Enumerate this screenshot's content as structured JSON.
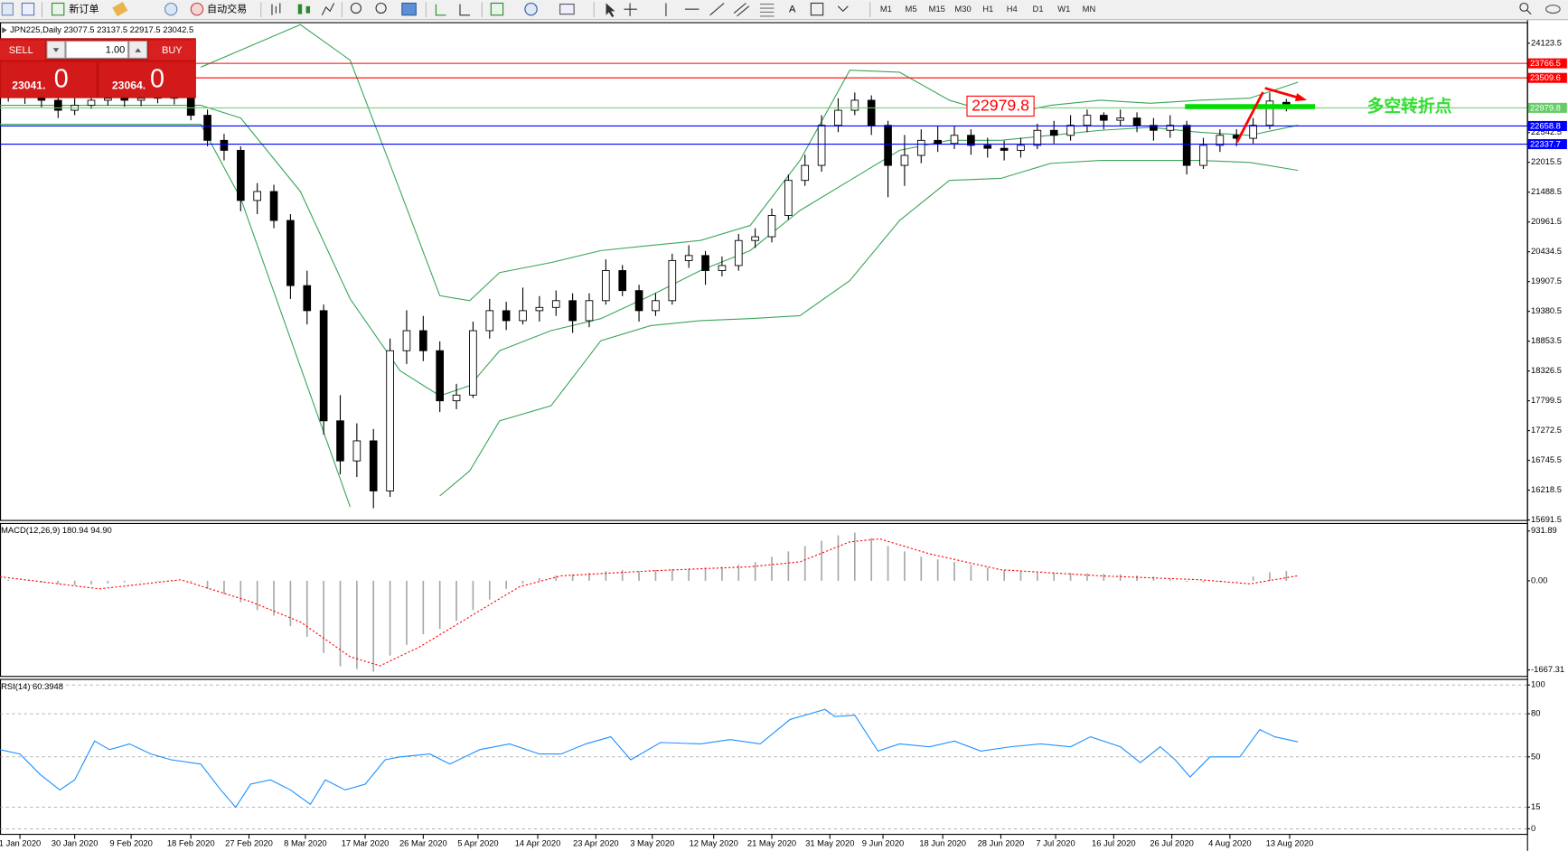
{
  "toolbar": {
    "new_order": "新订单",
    "auto_trading": "自动交易",
    "timeframes": [
      "M1",
      "M5",
      "M15",
      "M30",
      "H1",
      "H4",
      "D1",
      "W1",
      "MN"
    ]
  },
  "trade_panel": {
    "sell": "SELL",
    "lot": "1.00",
    "buy": "BUY",
    "bid": "23041.",
    "bid_last": "0",
    "ask": "23064.",
    "ask_last": "0"
  },
  "chart_data": [
    {
      "type": "candlestick",
      "title": "JPN225,Daily  23077.5 23137.5 22917.5 23042.5",
      "xlim": [
        -0.5,
        91.5
      ],
      "ylim": [
        15674,
        24495
      ],
      "yticks": [
        15691.5,
        16218.5,
        16745.5,
        17272.5,
        17799.5,
        18326.5,
        18853.5,
        19380.5,
        19907.5,
        20434.5,
        20961.5,
        21488.5,
        22015.5,
        22542.5,
        24123.5
      ],
      "xticks": [
        {
          "value": 0.7,
          "label": "1 Jan 2020"
        },
        {
          "value": 4.0,
          "label": "30 Jan 2020"
        },
        {
          "value": 7.4,
          "label": "9 Feb 2020"
        },
        {
          "value": 11.0,
          "label": "18 Feb 2020"
        },
        {
          "value": 14.5,
          "label": "27 Feb 2020"
        },
        {
          "value": 17.9,
          "label": "8 Mar 2020"
        },
        {
          "value": 21.5,
          "label": "17 Mar 2020"
        },
        {
          "value": 25.0,
          "label": "26 Mar 2020"
        },
        {
          "value": 28.3,
          "label": "5 Apr 2020"
        },
        {
          "value": 31.9,
          "label": "14 Apr 2020"
        },
        {
          "value": 35.4,
          "label": "23 Apr 2020"
        },
        {
          "value": 38.8,
          "label": "3 May 2020"
        },
        {
          "value": 42.5,
          "label": "12 May 2020"
        },
        {
          "value": 46.0,
          "label": "21 May 2020"
        },
        {
          "value": 49.5,
          "label": "31 May 2020"
        },
        {
          "value": 52.7,
          "label": "9 Jun 2020"
        },
        {
          "value": 56.3,
          "label": "18 Jun 2020"
        },
        {
          "value": 59.8,
          "label": "28 Jun 2020"
        },
        {
          "value": 63.1,
          "label": "7 Jul 2020"
        },
        {
          "value": 66.6,
          "label": "16 Jul 2020"
        },
        {
          "value": 70.1,
          "label": "26 Jul 2020"
        },
        {
          "value": 73.6,
          "label": "4 Aug 2020"
        },
        {
          "value": 77.2,
          "label": "13 Aug 2020"
        }
      ],
      "open": [
        23250,
        23202,
        23167,
        23114,
        22937,
        23025,
        23114,
        23149,
        23114,
        23149,
        23167,
        23149,
        22848,
        22405,
        22228,
        21342,
        21500,
        20988,
        19836,
        19393,
        17445,
        16736,
        17091,
        16205,
        18685,
        19039,
        18685,
        17799,
        17900,
        19039,
        19393,
        19216,
        19393,
        19450,
        19570,
        19216,
        19570,
        20102,
        19748,
        19393,
        19570,
        20279,
        20368,
        20102,
        20191,
        20634,
        20700,
        21077,
        21697,
        21962,
        22671,
        22937,
        23114,
        22671,
        21962,
        22139,
        22405,
        22350,
        22494,
        22317,
        22264,
        22228,
        22317,
        22582,
        22494,
        22671,
        22848,
        22760,
        22800,
        22671,
        22582,
        22671,
        21962,
        22317,
        22494,
        22441,
        22671,
        23077.5
      ],
      "high": [
        23380,
        23320,
        23290,
        23200,
        23150,
        23230,
        23260,
        23270,
        23250,
        23290,
        23280,
        23230,
        22950,
        22520,
        22300,
        21650,
        21620,
        21100,
        20100,
        19500,
        17900,
        17400,
        17300,
        18900,
        19400,
        19300,
        18850,
        18100,
        19200,
        19600,
        19550,
        19800,
        19650,
        19750,
        19700,
        19700,
        20300,
        20200,
        19850,
        19700,
        20400,
        20550,
        20450,
        20350,
        20750,
        20850,
        21200,
        21800,
        22150,
        22850,
        23150,
        23250,
        23200,
        22750,
        22500,
        22600,
        22650,
        22650,
        22600,
        22450,
        22400,
        22450,
        22700,
        22750,
        22850,
        22950,
        22900,
        22950,
        22900,
        22800,
        22850,
        22750,
        22450,
        22600,
        22600,
        22800,
        23250,
        23137.5
      ],
      "low": [
        23090,
        23050,
        22990,
        22800,
        22850,
        22960,
        23020,
        23000,
        23010,
        23060,
        23040,
        22760,
        22300,
        22050,
        21150,
        21100,
        20850,
        19600,
        19150,
        17200,
        16500,
        16450,
        15900,
        16100,
        18450,
        18500,
        17600,
        17650,
        17850,
        18900,
        19050,
        19150,
        19200,
        19300,
        19000,
        19100,
        19500,
        19650,
        19200,
        19300,
        19500,
        20150,
        19850,
        20000,
        20100,
        20500,
        20600,
        21000,
        21600,
        21850,
        22550,
        22850,
        22500,
        21400,
        21600,
        22000,
        22200,
        22250,
        22150,
        22100,
        22050,
        22100,
        22250,
        22350,
        22400,
        22550,
        22600,
        22650,
        22550,
        22400,
        22450,
        21800,
        21900,
        22200,
        22300,
        22350,
        22600,
        22917.5
      ],
      "close": [
        23202,
        23167,
        23114,
        22937,
        23025,
        23114,
        23149,
        23114,
        23149,
        23167,
        23149,
        22848,
        22405,
        22228,
        21342,
        21500,
        20988,
        19836,
        19393,
        17445,
        16736,
        17091,
        16205,
        18685,
        19039,
        18685,
        17799,
        17900,
        19039,
        19393,
        19216,
        19393,
        19450,
        19570,
        19216,
        19570,
        20102,
        19748,
        19393,
        19570,
        20279,
        20368,
        20102,
        20191,
        20634,
        20700,
        21077,
        21697,
        21962,
        22671,
        22937,
        23114,
        22671,
        21962,
        22139,
        22405,
        22350,
        22494,
        22317,
        22264,
        22228,
        22317,
        22582,
        22494,
        22671,
        22848,
        22760,
        22800,
        22671,
        22582,
        22671,
        21962,
        22317,
        22494,
        22441,
        22671,
        23100,
        23042.5
      ],
      "up_color": "#ffffff",
      "down_color": "#000000",
      "series": [
        {
          "color": "#3aa65a",
          "x": [
            -0.5,
            11.6,
            14.0,
            17.6,
            20.6,
            23.6,
            26.0,
            27.8,
            29.6,
            32.7,
            35.7,
            38.7,
            41.7,
            44.7,
            47.7,
            50.7,
            53.7,
            56.7,
            59.8,
            62.8,
            65.8,
            68.8,
            71.8,
            74.8,
            77.7
          ],
          "values": [
            null,
            23700,
            24000,
            24450,
            23822,
            21519,
            19659,
            19570,
            20067,
            20244,
            20456,
            20545,
            20634,
            20899,
            22051,
            23645,
            23610,
            23114,
            22848,
            23025,
            23114,
            23061,
            23114,
            23149,
            23433
          ]
        },
        {
          "color": "#3aa65a",
          "x": [
            -0.5,
            11.6,
            14.0,
            17.6,
            20.6,
            23.6,
            26.0,
            27.8,
            29.6,
            32.7,
            35.7,
            38.7,
            41.7,
            44.7,
            47.7,
            50.7,
            53.7,
            56.7,
            59.8,
            62.8,
            65.8,
            68.8,
            71.8,
            74.8,
            77.7
          ],
          "values": [
            23025,
            23025,
            22800,
            21500,
            19600,
            18331,
            17888,
            18065,
            18685,
            19039,
            19252,
            19659,
            20102,
            20456,
            21165,
            21697,
            22228,
            22405,
            22405,
            22494,
            22582,
            22635,
            22547,
            22494,
            22671
          ]
        },
        {
          "color": "#3aa65a",
          "x": [
            -0.5,
            11.6,
            14.0,
            17.6,
            20.6,
            23.6,
            26.0,
            27.8,
            29.6,
            32.7,
            35.7,
            38.7,
            41.7,
            44.7,
            47.7,
            50.7,
            53.7,
            56.7,
            59.8,
            62.8,
            65.8,
            68.8,
            71.8,
            74.8,
            77.7
          ],
          "values": [
            22689,
            22689,
            21378,
            18401,
            15922,
            null,
            16116,
            16559,
            17445,
            17711,
            18862,
            19128,
            19216,
            19252,
            19305,
            19925,
            20988,
            21697,
            21732,
            21998,
            22051,
            22051,
            22051,
            22015,
            21874
          ]
        }
      ],
      "levels": [
        {
          "value": 23766.5,
          "color": "#ff0000"
        },
        {
          "value": 23509.6,
          "color": "#ff0000"
        },
        {
          "value": 22979.8,
          "color": "#66cc66"
        },
        {
          "value": 22658.8,
          "color": "#0000ff"
        },
        {
          "value": 22337.7,
          "color": "#0000ff"
        }
      ],
      "annotations": [
        "22979.8",
        "多空转折点"
      ]
    },
    {
      "type": "macd",
      "title": "MACD(12,26,9) 180.94 94.90",
      "ylim": [
        -1798,
        1082
      ],
      "yticks": [
        -1667.31,
        {
          "value": 0,
          "label": "0.00"
        },
        931.89
      ],
      "series": [
        {
          "color": "#a8a8a8",
          "values": [
            20,
            10,
            -30,
            -60,
            -80,
            -70,
            -50,
            -30,
            -10,
            0,
            0,
            -20,
            -150,
            -250,
            -400,
            -550,
            -650,
            -850,
            -1050,
            -1350,
            -1600,
            -1650,
            -1700,
            -1400,
            -1200,
            -1000,
            -900,
            -750,
            -550,
            -350,
            -150,
            -50,
            50,
            100,
            120,
            150,
            180,
            200,
            180,
            200,
            220,
            230,
            250,
            260,
            300,
            350,
            450,
            550,
            650,
            750,
            850,
            900,
            800,
            650,
            550,
            450,
            400,
            350,
            300,
            250,
            200,
            180,
            150,
            150,
            150,
            140,
            130,
            120,
            100,
            80,
            40,
            -20,
            -30,
            -20,
            0,
            80,
            160,
            181
          ]
        },
        {
          "color": "#ff0000",
          "dash": true,
          "x": [
            -0.5,
            5.5,
            10.4,
            14.6,
            17.6,
            20.6,
            22.4,
            24.8,
            27.8,
            30.8,
            33.3,
            38.7,
            44.7,
            47.7,
            50.7,
            52.5,
            55.5,
            59.8,
            65.8,
            71.8,
            74.8,
            77.7
          ],
          "values": [
            75,
            -150,
            20,
            -390,
            -770,
            -1420,
            -1590,
            -1234,
            -673,
            -112,
            93,
            187,
            262,
            355,
            729,
            785,
            505,
            206,
            93,
            19,
            -56,
            95
          ]
        }
      ]
    },
    {
      "type": "line",
      "title": "RSI(14) 60.3948",
      "grid": true,
      "ylim": [
        -4.2,
        104.2
      ],
      "yticks": [
        0,
        15,
        50,
        80,
        100
      ],
      "series": [
        {
          "color": "#1e90ff",
          "x": [
            -0.5,
            0.7,
            1.9,
            3.1,
            4.0,
            5.2,
            6.1,
            7.3,
            8.6,
            9.8,
            11.6,
            12.8,
            13.7,
            14.6,
            15.8,
            17.0,
            18.2,
            19.1,
            20.3,
            21.5,
            22.7,
            23.6,
            25.4,
            26.6,
            28.4,
            30.2,
            32.0,
            33.3,
            34.8,
            36.3,
            37.5,
            39.3,
            41.7,
            43.5,
            45.3,
            47.1,
            49.2,
            49.8,
            51.0,
            52.4,
            53.7,
            55.5,
            57.0,
            58.6,
            60.4,
            62.2,
            64.0,
            65.2,
            67.0,
            68.2,
            69.4,
            70.3,
            71.2,
            72.4,
            74.2,
            75.4,
            76.3,
            77.7
          ],
          "values": [
            55,
            52,
            38,
            27,
            34,
            61,
            55,
            59,
            52,
            48,
            45,
            27,
            15,
            31,
            34,
            27,
            17,
            34,
            27,
            31,
            48,
            50,
            52,
            45,
            55,
            59,
            52,
            52,
            59,
            64,
            48,
            60,
            59,
            62,
            59,
            76,
            83,
            78,
            79,
            54,
            59,
            57,
            61,
            54,
            57,
            59,
            57,
            64,
            57,
            46,
            57,
            48,
            36,
            50,
            50,
            69,
            64,
            60.4
          ]
        }
      ]
    }
  ]
}
